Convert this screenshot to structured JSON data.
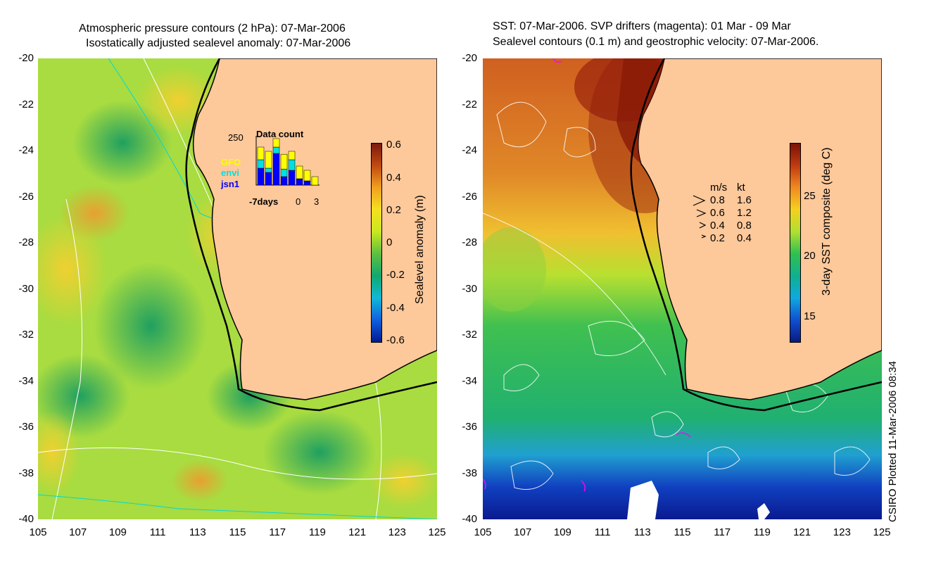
{
  "left_panel": {
    "title_line1": "Atmospheric pressure contours (2 hPa): 07-Mar-2006",
    "title_line2": "Isostatically adjusted sealevel anomaly: 07-Mar-2006",
    "y_ticks": [
      "-20",
      "-22",
      "-24",
      "-26",
      "-28",
      "-30",
      "-32",
      "-34",
      "-36",
      "-38",
      "-40"
    ],
    "x_ticks": [
      "105",
      "107",
      "109",
      "111",
      "113",
      "115",
      "117",
      "119",
      "121",
      "123",
      "125"
    ],
    "colorbar": {
      "label": "Sealevel anomaly (m)",
      "ticks": [
        "0.6",
        "0.4",
        "0.2",
        "0",
        "-0.2",
        "-0.4",
        "-0.6"
      ]
    },
    "inset": {
      "title": "Data count",
      "ymax_label": "250",
      "x_labels": [
        "-7days",
        "0",
        "3"
      ],
      "series": [
        {
          "name": "GFO",
          "color": "#ffff00"
        },
        {
          "name": "envi",
          "color": "#00e0e0"
        },
        {
          "name": "jsn1",
          "color": "#0000ff"
        }
      ]
    }
  },
  "right_panel": {
    "title_line1": "SST: 07-Mar-2006. SVP drifters (magenta): 01 Mar - 09 Mar",
    "title_line2": "Sealevel contours (0.1 m) and geostrophic velocity: 07-Mar-2006.",
    "y_ticks": [
      "-20",
      "-22",
      "-24",
      "-26",
      "-28",
      "-30",
      "-32",
      "-34",
      "-36",
      "-38",
      "-40"
    ],
    "x_ticks": [
      "105",
      "107",
      "109",
      "111",
      "113",
      "115",
      "117",
      "119",
      "121",
      "123",
      "125"
    ],
    "colorbar": {
      "label": "3-day SST composite (deg C)",
      "ticks": [
        "25",
        "20",
        "15"
      ]
    },
    "velocity_legend": {
      "header_ms": "m/s",
      "header_kt": "kt",
      "rows": [
        {
          "ms": "0.8",
          "kt": "1.6"
        },
        {
          "ms": "0.6",
          "kt": "1.2"
        },
        {
          "ms": "0.4",
          "kt": "0.8"
        },
        {
          "ms": "0.2",
          "kt": "0.4"
        }
      ]
    }
  },
  "credit": "CSIRO Plotted 11-Mar-2006 08:34",
  "colors": {
    "land": "#fdc89a",
    "coast": "#000000",
    "drifter": "#ff00ff",
    "pressure_contour": "#ffffff",
    "cyan_contour": "#00d8d8"
  }
}
